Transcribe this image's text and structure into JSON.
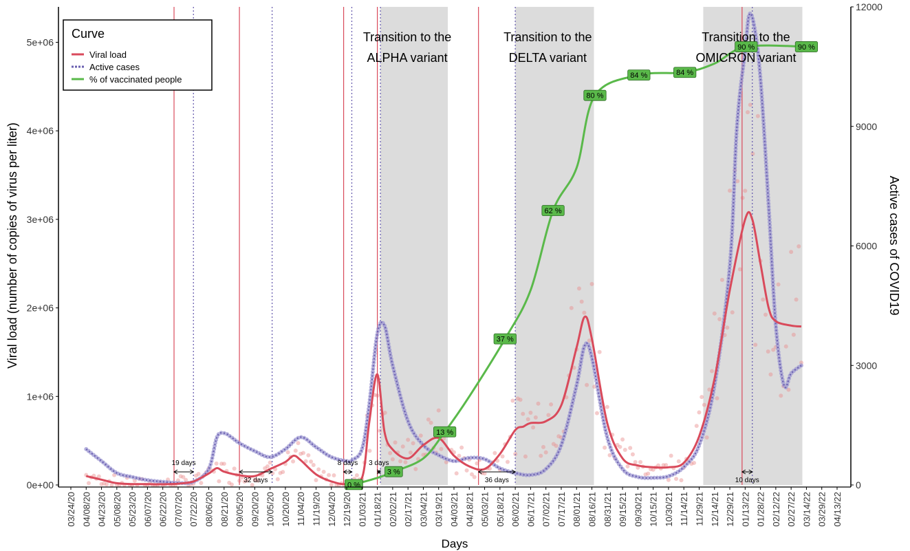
{
  "chart_data": {
    "type": "line",
    "xlabel": "Days",
    "ylabel_left": "Viral load (number of copies of virus per liter)",
    "ylabel_right": "Active cases of COVID19",
    "x_ticks": [
      "03/24/20",
      "04/08/20",
      "04/23/20",
      "05/08/20",
      "05/23/20",
      "06/07/20",
      "06/22/20",
      "07/07/20",
      "07/22/20",
      "08/06/20",
      "08/21/20",
      "09/05/20",
      "09/20/20",
      "10/05/20",
      "10/20/20",
      "11/04/20",
      "11/19/20",
      "12/04/20",
      "12/19/20",
      "01/03/21",
      "01/18/21",
      "02/02/21",
      "02/17/21",
      "03/04/21",
      "03/19/21",
      "04/03/21",
      "04/18/21",
      "05/03/21",
      "05/18/21",
      "06/02/21",
      "06/17/21",
      "07/02/21",
      "07/17/21",
      "08/01/21",
      "08/16/21",
      "08/31/21",
      "09/15/21",
      "09/30/21",
      "10/15/21",
      "10/30/21",
      "11/14/21",
      "11/29/21",
      "12/14/21",
      "12/29/21",
      "01/13/22",
      "01/28/22",
      "02/12/22",
      "02/27/22",
      "03/14/22",
      "03/29/22",
      "04/13/22"
    ],
    "y_left_ticks": [
      "0e+00",
      "1e+06",
      "2e+06",
      "3e+06",
      "4e+06",
      "5e+06"
    ],
    "y_left_lim": [
      0,
      5400000
    ],
    "y_right_ticks": [
      "0",
      "3000",
      "6000",
      "9000",
      "12000"
    ],
    "y_right_lim": [
      0,
      12000
    ],
    "legend": {
      "title": "Curve",
      "position": "top-left",
      "items": [
        {
          "label": "Viral load",
          "color": "#d94a5b",
          "style": "solid"
        },
        {
          "label": "Active cases",
          "color": "#6a5fb0",
          "style": "dotted"
        },
        {
          "label": "% of vaccinated people",
          "color": "#5ab94a",
          "style": "solid"
        }
      ]
    },
    "shaded_regions": [
      {
        "start": "01/21/21",
        "end": "03/28/21",
        "label": [
          "Transition to the",
          "ALPHA variant"
        ]
      },
      {
        "start": "06/02/21",
        "end": "08/18/21",
        "label": [
          "Transition to the",
          "DELTA variant"
        ]
      },
      {
        "start": "12/03/21",
        "end": "03/10/22",
        "label": [
          "Transition to the",
          "OMICRON variant"
        ]
      }
    ],
    "lag_annotations": [
      {
        "viral_peak": "07/03/20",
        "cases_peak": "07/22/20",
        "label": "19 days"
      },
      {
        "viral_peak": "09/05/20",
        "cases_peak": "10/07/20",
        "label": "32 days"
      },
      {
        "viral_peak": "12/16/20",
        "cases_peak": "12/24/20",
        "label": "8 days"
      },
      {
        "viral_peak": "01/18/21",
        "cases_peak": "01/21/21",
        "label": "3 days"
      },
      {
        "viral_peak": "04/27/21",
        "cases_peak": "06/02/21",
        "label": "36 days"
      },
      {
        "viral_peak": "01/10/22",
        "cases_peak": "01/20/22",
        "label": "10 days"
      }
    ],
    "vaccination_labels": [
      {
        "date": "12/26/20",
        "label": "0 %"
      },
      {
        "date": "02/03/21",
        "label": "3 %"
      },
      {
        "date": "03/25/21",
        "label": "13 %"
      },
      {
        "date": "05/23/21",
        "label": "37 %"
      },
      {
        "date": "07/09/21",
        "label": "62 %"
      },
      {
        "date": "08/19/21",
        "label": "80 %"
      },
      {
        "date": "10/01/21",
        "label": "84 %"
      },
      {
        "date": "11/15/21",
        "label": "84 %"
      },
      {
        "date": "01/14/22",
        "label": "90 %"
      },
      {
        "date": "03/14/22",
        "label": "90 %"
      }
    ],
    "series": [
      {
        "name": "Viral load",
        "axis": "left",
        "x": [
          "04/08/20",
          "04/23/20",
          "05/08/20",
          "05/23/20",
          "06/07/20",
          "06/22/20",
          "07/07/20",
          "07/22/20",
          "08/06/20",
          "08/14/20",
          "08/21/20",
          "09/05/20",
          "09/20/20",
          "10/05/20",
          "10/20/20",
          "10/28/20",
          "11/04/20",
          "11/19/20",
          "12/04/20",
          "12/19/20",
          "01/03/21",
          "01/10/21",
          "01/18/21",
          "01/25/21",
          "02/02/21",
          "02/17/21",
          "03/04/21",
          "03/19/21",
          "04/03/21",
          "04/18/21",
          "05/03/21",
          "05/18/21",
          "06/02/21",
          "06/10/21",
          "06/17/21",
          "07/02/21",
          "07/17/21",
          "08/01/21",
          "08/09/21",
          "08/16/21",
          "08/31/21",
          "09/15/21",
          "09/30/21",
          "10/15/21",
          "10/30/21",
          "11/14/21",
          "11/29/21",
          "12/14/21",
          "12/29/21",
          "01/13/22",
          "01/20/22",
          "01/28/22",
          "02/05/22",
          "02/12/22",
          "02/27/22",
          "03/09/22"
        ],
        "values": [
          100000,
          60000,
          20000,
          10000,
          10000,
          8000,
          15000,
          40000,
          130000,
          190000,
          150000,
          110000,
          100000,
          180000,
          260000,
          330000,
          280000,
          120000,
          40000,
          10000,
          80000,
          700000,
          1250000,
          600000,
          400000,
          300000,
          450000,
          530000,
          330000,
          210000,
          180000,
          350000,
          620000,
          660000,
          700000,
          720000,
          900000,
          1550000,
          1900000,
          1650000,
          700000,
          300000,
          220000,
          200000,
          200000,
          250000,
          550000,
          1200000,
          2200000,
          3000000,
          3000000,
          2500000,
          2000000,
          1850000,
          1800000,
          1790000
        ]
      },
      {
        "name": "Active cases",
        "axis": "right",
        "x": [
          "04/08/20",
          "04/23/20",
          "05/08/20",
          "05/23/20",
          "06/07/20",
          "06/22/20",
          "07/07/20",
          "07/22/20",
          "08/06/20",
          "08/14/20",
          "08/21/20",
          "08/28/20",
          "09/05/20",
          "09/20/20",
          "10/05/20",
          "10/20/20",
          "11/04/20",
          "11/19/20",
          "12/04/20",
          "12/19/20",
          "12/24/20",
          "01/03/21",
          "01/10/21",
          "01/18/21",
          "01/25/21",
          "02/02/21",
          "02/17/21",
          "03/04/21",
          "03/19/21",
          "04/03/21",
          "04/18/21",
          "05/03/21",
          "05/18/21",
          "06/02/21",
          "06/17/21",
          "07/02/21",
          "07/17/21",
          "08/01/21",
          "08/09/21",
          "08/16/21",
          "08/31/21",
          "09/15/21",
          "09/30/21",
          "10/15/21",
          "10/30/21",
          "11/14/21",
          "11/29/21",
          "12/14/21",
          "12/29/21",
          "01/05/22",
          "01/13/22",
          "01/17/22",
          "01/22/22",
          "01/28/22",
          "02/05/22",
          "02/12/22",
          "02/20/22",
          "02/27/22",
          "03/09/22"
        ],
        "values": [
          900,
          600,
          300,
          200,
          120,
          80,
          50,
          80,
          400,
          1200,
          1300,
          1200,
          1050,
          850,
          700,
          900,
          1200,
          950,
          700,
          600,
          620,
          900,
          2000,
          3800,
          4000,
          3000,
          1600,
          1000,
          750,
          600,
          680,
          650,
          420,
          300,
          250,
          400,
          1000,
          2500,
          3500,
          3200,
          1200,
          400,
          200,
          180,
          220,
          450,
          1000,
          2500,
          5500,
          9000,
          10900,
          11800,
          11500,
          10200,
          7000,
          4000,
          2500,
          2800,
          3000
        ]
      },
      {
        "name": "% of vaccinated people",
        "axis": "left",
        "x": [
          "12/26/20",
          "01/18/21",
          "02/03/21",
          "03/04/21",
          "03/25/21",
          "04/18/21",
          "05/23/21",
          "06/17/21",
          "07/09/21",
          "08/01/21",
          "08/19/21",
          "10/01/21",
          "11/15/21",
          "12/14/21",
          "01/14/22",
          "03/14/22"
        ],
        "values": [
          5000,
          80000,
          150000,
          300000,
          600000,
          1000000,
          1650000,
          2200000,
          3100000,
          3580000,
          4400000,
          4630000,
          4660000,
          4760000,
          4950000,
          4950000
        ]
      }
    ]
  }
}
